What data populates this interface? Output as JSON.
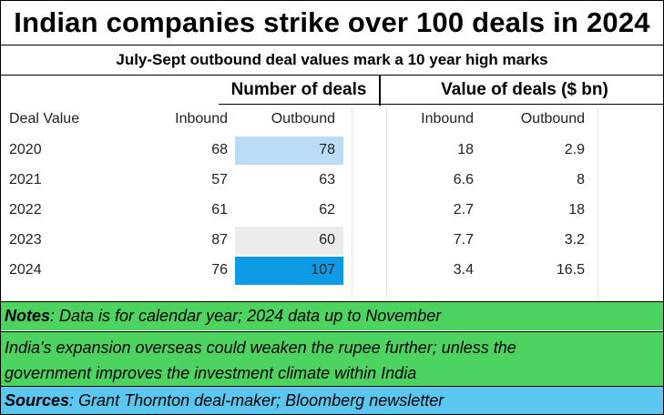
{
  "title": "Indian companies strike over 100 deals in 2024",
  "subtitle": "July-Sept outbound deal values mark a 10 year high  marks",
  "group_headers": {
    "number_of_deals": "Number of deals",
    "value_of_deals": "Value of deals ($ bn)"
  },
  "columns": {
    "deal_value": "Deal Value",
    "inbound": "Inbound",
    "outbound": "Outbound"
  },
  "highlight_colors": {
    "light_blue": "#bcdcf5",
    "gray": "#ececec",
    "bright_blue": "#0f9ae6"
  },
  "notes": {
    "label": "Notes",
    "text": " : Data is for calendar year; 2024 data up to November",
    "line2": "India's expansion overseas could weaken the rupee further; unless the",
    "line3": "government improves the investment climate within India"
  },
  "sources": {
    "label": "Sources",
    "text": " :  Grant Thornton deal-maker; Bloomberg newsletter"
  },
  "chart_data": {
    "type": "table",
    "title": "Indian companies strike over 100 deals in 2024",
    "subtitle": "July-Sept outbound deal values mark a 10 year high  marks",
    "columns": [
      "Deal Value",
      "Inbound",
      "Outbound",
      "Inbound",
      "Outbound"
    ],
    "column_groups": [
      "Number of deals",
      "Value of deals ($ bn)"
    ],
    "rows": [
      {
        "year": "2020",
        "deals_inbound": "68",
        "deals_outbound": "78",
        "value_inbound": "18",
        "value_outbound": "2.9",
        "highlight": "light_blue"
      },
      {
        "year": "2021",
        "deals_inbound": "57",
        "deals_outbound": "63",
        "value_inbound": "6.6",
        "value_outbound": "8",
        "highlight": ""
      },
      {
        "year": "2022",
        "deals_inbound": "61",
        "deals_outbound": "62",
        "value_inbound": "2.7",
        "value_outbound": "18",
        "highlight": ""
      },
      {
        "year": "2023",
        "deals_inbound": "87",
        "deals_outbound": "60",
        "value_inbound": "7.7",
        "value_outbound": "3.2",
        "highlight": "gray"
      },
      {
        "year": "2024",
        "deals_inbound": "76",
        "deals_outbound": "107",
        "value_inbound": "3.4",
        "value_outbound": "16.5",
        "highlight": "bright_blue"
      }
    ]
  }
}
